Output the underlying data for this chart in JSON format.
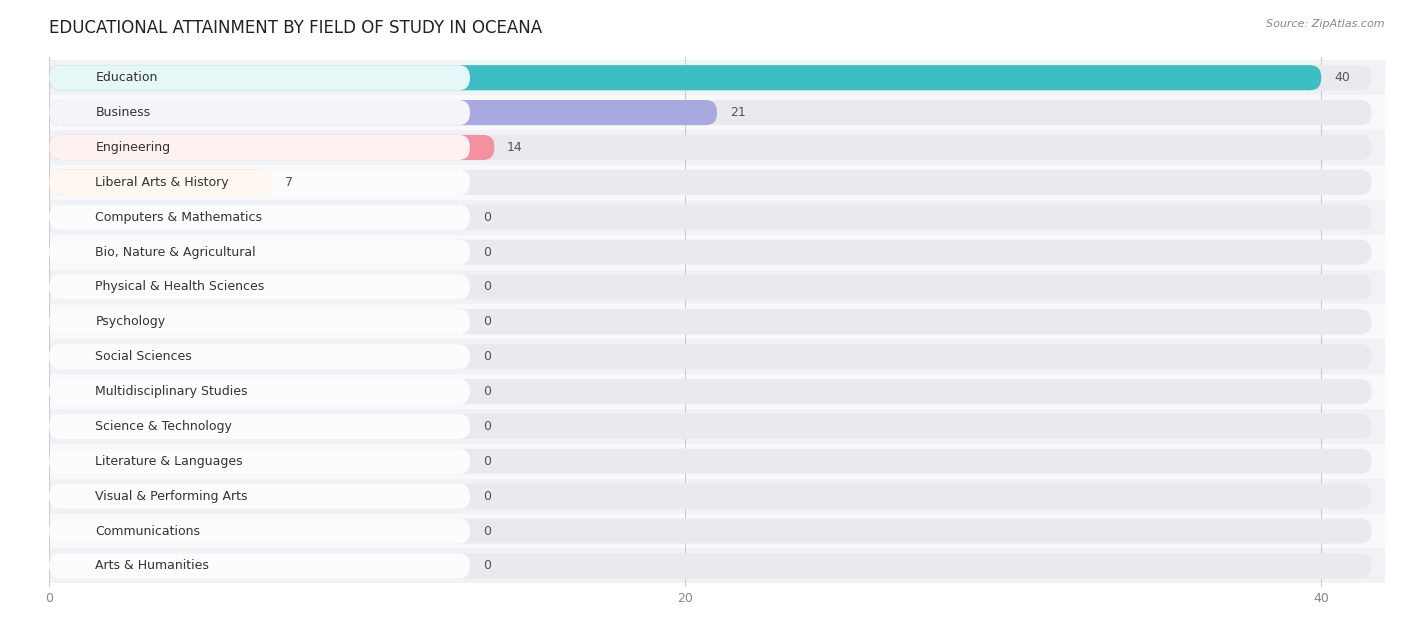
{
  "title": "EDUCATIONAL ATTAINMENT BY FIELD OF STUDY IN OCEANA",
  "source": "Source: ZipAtlas.com",
  "categories": [
    "Education",
    "Business",
    "Engineering",
    "Liberal Arts & History",
    "Computers & Mathematics",
    "Bio, Nature & Agricultural",
    "Physical & Health Sciences",
    "Psychology",
    "Social Sciences",
    "Multidisciplinary Studies",
    "Science & Technology",
    "Literature & Languages",
    "Visual & Performing Arts",
    "Communications",
    "Arts & Humanities"
  ],
  "values": [
    40,
    21,
    14,
    7,
    0,
    0,
    0,
    0,
    0,
    0,
    0,
    0,
    0,
    0,
    0
  ],
  "bar_colors": [
    "#3bbfc4",
    "#a8aadf",
    "#f5909e",
    "#f9ca96",
    "#f5909e",
    "#a8c8f0",
    "#c8aaec",
    "#72cece",
    "#bcb4ec",
    "#f5909e",
    "#f9ca96",
    "#f5aaaa",
    "#a8c8f0",
    "#c8aaec",
    "#72cece"
  ],
  "xlim_max": 42,
  "xticks": [
    0,
    20,
    40
  ],
  "title_fontsize": 12,
  "label_fontsize": 9,
  "value_fontsize": 9,
  "bar_height": 0.72,
  "row_colors": [
    "#f0f2f5",
    "#f8f9fb"
  ]
}
